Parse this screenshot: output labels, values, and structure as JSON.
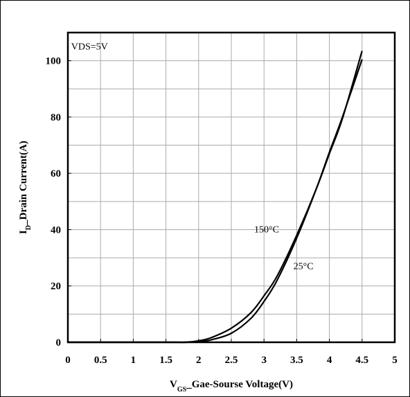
{
  "chart_data": {
    "type": "line",
    "xlabel": {
      "main": "V",
      "sub": "GS",
      "rest": "_Gae-Sourse Voltage(V)"
    },
    "ylabel": {
      "main": "I",
      "sub": "D",
      "rest": "_Drain Current(A)"
    },
    "xlim": [
      0,
      5
    ],
    "ylim": [
      0,
      110
    ],
    "x_ticks": [
      "0",
      "0.5",
      "1",
      "1.5",
      "2",
      "2.5",
      "3",
      "3.5",
      "4",
      "4.5",
      "5"
    ],
    "y_ticks": [
      "0",
      "20",
      "40",
      "60",
      "80",
      "100"
    ],
    "grid": true,
    "annotations": [
      {
        "text": "VDS=5V",
        "x": 0.05,
        "y": 104
      },
      {
        "text": "150°C",
        "x": 2.85,
        "y": 39
      },
      {
        "text": "25°C",
        "x": 3.45,
        "y": 26
      }
    ],
    "series": [
      {
        "x": [
          0,
          1.5,
          1.8,
          2.0,
          2.2,
          2.5,
          2.8,
          3.0,
          3.2,
          3.5,
          3.8,
          4.0,
          4.2,
          4.5
        ],
        "values": [
          0,
          0,
          0,
          0.5,
          1.7,
          5.0,
          10.5,
          16.5,
          23.5,
          38.0,
          54.5,
          67.0,
          79.5,
          103.5
        ]
      },
      {
        "x": [
          0,
          1.5,
          1.8,
          2.0,
          2.2,
          2.5,
          2.8,
          3.0,
          3.2,
          3.5,
          3.8,
          4.0,
          4.2,
          4.5
        ],
        "values": [
          0,
          0,
          0,
          0.2,
          0.9,
          3.2,
          8.5,
          14.5,
          22.0,
          37.0,
          54.5,
          67.5,
          80.0,
          100.5
        ]
      }
    ]
  }
}
